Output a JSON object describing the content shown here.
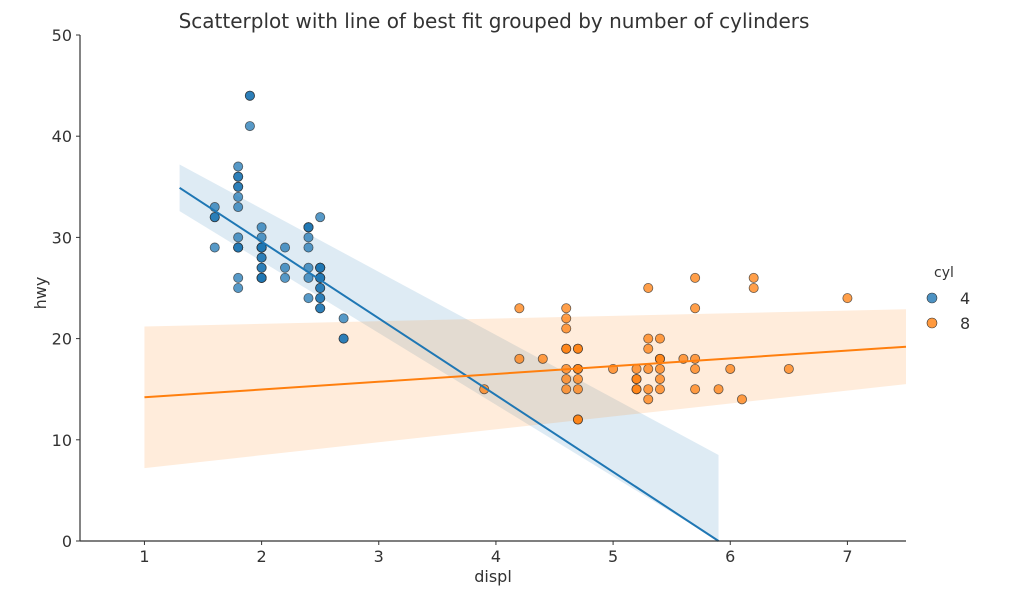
{
  "chart_data": {
    "type": "scatter",
    "title": "Scatterplot with line of best fit grouped by number of cylinders",
    "xlabel": "displ",
    "ylabel": "hwy",
    "xlim": [
      0.45,
      7.5
    ],
    "ylim": [
      0,
      50
    ],
    "xticks": [
      "1",
      "2",
      "3",
      "4",
      "5",
      "6",
      "7"
    ],
    "yticks": [
      "0",
      "10",
      "20",
      "30",
      "40",
      "50"
    ],
    "grid": false,
    "legend": {
      "title": "cyl",
      "position": "right"
    },
    "series": [
      {
        "name": "4",
        "color": "#1f77b4",
        "points": [
          [
            1.8,
            29
          ],
          [
            1.8,
            29
          ],
          [
            2.0,
            31
          ],
          [
            2.0,
            30
          ],
          [
            2.4,
            26
          ],
          [
            2.4,
            29
          ],
          [
            2.5,
            26
          ],
          [
            2.5,
            23
          ],
          [
            2.5,
            25
          ],
          [
            2.5,
            27
          ],
          [
            2.5,
            24
          ],
          [
            2.5,
            27
          ],
          [
            1.8,
            26
          ],
          [
            1.8,
            25
          ],
          [
            2.0,
            28
          ],
          [
            2.0,
            27
          ],
          [
            2.0,
            26
          ],
          [
            2.0,
            29
          ],
          [
            2.4,
            31
          ],
          [
            2.4,
            30
          ],
          [
            2.4,
            31
          ],
          [
            2.2,
            26
          ],
          [
            2.2,
            29
          ],
          [
            2.4,
            27
          ],
          [
            2.4,
            31
          ],
          [
            2.5,
            32
          ],
          [
            2.5,
            27
          ],
          [
            2.2,
            27
          ],
          [
            2.5,
            26
          ],
          [
            2.5,
            26
          ],
          [
            2.5,
            25
          ],
          [
            2.5,
            27
          ],
          [
            1.8,
            30
          ],
          [
            1.8,
            33
          ],
          [
            1.8,
            35
          ],
          [
            1.8,
            37
          ],
          [
            1.8,
            35
          ],
          [
            1.9,
            44
          ],
          [
            1.9,
            44
          ],
          [
            1.9,
            41
          ],
          [
            1.8,
            29
          ],
          [
            1.8,
            36
          ],
          [
            1.8,
            36
          ],
          [
            1.8,
            34
          ],
          [
            2.0,
            29
          ],
          [
            2.0,
            26
          ],
          [
            2.0,
            29
          ],
          [
            2.0,
            29
          ],
          [
            2.0,
            28
          ],
          [
            2.0,
            29
          ],
          [
            2.0,
            26
          ],
          [
            2.0,
            26
          ],
          [
            2.0,
            27
          ],
          [
            2.7,
            20
          ],
          [
            2.7,
            20
          ],
          [
            2.7,
            22
          ],
          [
            1.6,
            33
          ],
          [
            1.6,
            32
          ],
          [
            1.6,
            32
          ],
          [
            1.6,
            29
          ],
          [
            2.4,
            24
          ],
          [
            2.5,
            24
          ],
          [
            2.5,
            23
          ]
        ],
        "fit": {
          "x": [
            1.3,
            5.9
          ],
          "y": [
            34.9,
            0
          ],
          "ci_halfwidth_at_ends": [
            2.3,
            8.5
          ]
        }
      },
      {
        "name": "8",
        "color": "#ff7f0e",
        "points": [
          [
            4.2,
            23
          ],
          [
            4.2,
            18
          ],
          [
            4.4,
            18
          ],
          [
            4.6,
            23
          ],
          [
            4.6,
            22
          ],
          [
            4.6,
            19
          ],
          [
            4.6,
            19
          ],
          [
            4.6,
            17
          ],
          [
            4.6,
            16
          ],
          [
            4.6,
            15
          ],
          [
            4.6,
            21
          ],
          [
            4.7,
            19
          ],
          [
            4.7,
            17
          ],
          [
            4.7,
            16
          ],
          [
            4.7,
            15
          ],
          [
            4.7,
            12
          ],
          [
            4.7,
            12
          ],
          [
            4.7,
            17
          ],
          [
            4.7,
            19
          ],
          [
            5.0,
            17
          ],
          [
            5.2,
            16
          ],
          [
            5.2,
            15
          ],
          [
            5.2,
            17
          ],
          [
            5.2,
            15
          ],
          [
            5.3,
            25
          ],
          [
            5.3,
            20
          ],
          [
            5.3,
            15
          ],
          [
            5.3,
            14
          ],
          [
            5.3,
            19
          ],
          [
            5.3,
            17
          ],
          [
            5.4,
            20
          ],
          [
            5.4,
            18
          ],
          [
            5.4,
            17
          ],
          [
            5.4,
            16
          ],
          [
            5.4,
            15
          ],
          [
            5.4,
            18
          ],
          [
            5.6,
            18
          ],
          [
            5.7,
            26
          ],
          [
            5.7,
            23
          ],
          [
            5.7,
            18
          ],
          [
            5.7,
            17
          ],
          [
            5.7,
            15
          ],
          [
            5.9,
            15
          ],
          [
            6.0,
            17
          ],
          [
            6.1,
            14
          ],
          [
            6.2,
            26
          ],
          [
            6.2,
            25
          ],
          [
            6.5,
            17
          ],
          [
            7.0,
            24
          ],
          [
            3.9,
            15
          ],
          [
            5.2,
            16
          ]
        ],
        "fit": {
          "x": [
            1.0,
            7.5
          ],
          "y": [
            14.2,
            19.2
          ],
          "ci_halfwidth_at_ends": [
            7.0,
            3.7
          ]
        }
      }
    ]
  }
}
